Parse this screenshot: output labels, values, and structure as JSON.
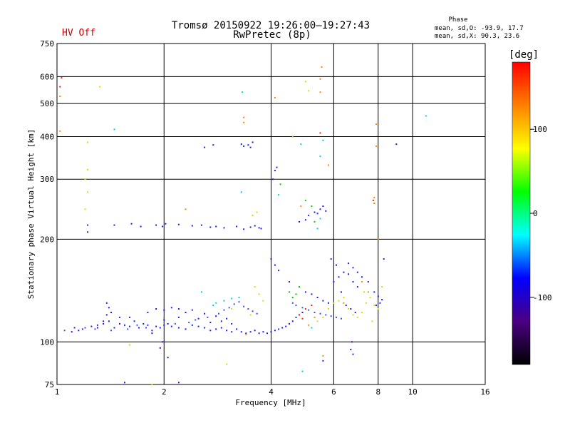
{
  "status_label": "HV Off",
  "status_color": "#cc0000",
  "chart_data": {
    "type": "scatter",
    "title": "Tromsø 20150922 19:26:00–19:27:43",
    "subtitle": "RwPretec (8p)",
    "xlabel": "Frequency [MHz]",
    "ylabel": "Stationary phase Virtual Height [km]",
    "x_scale": "log",
    "y_scale": "log",
    "xlim": [
      1,
      16
    ],
    "ylim": [
      75,
      750
    ],
    "x_ticks": [
      1,
      2,
      4,
      6,
      8,
      10,
      16
    ],
    "x_tick_labels": [
      "1",
      "2",
      "4",
      "6",
      "8",
      "10",
      "16"
    ],
    "y_ticks": [
      75,
      100,
      200,
      300,
      400,
      500,
      600,
      750
    ],
    "y_tick_labels": [
      "75",
      "100",
      "200",
      "300",
      "400",
      "500",
      "600",
      "750"
    ],
    "grid": true,
    "phase_stats": {
      "heading": "Phase",
      "line_o": "mean, sd,O: -93.9, 17.7",
      "line_x": "mean, sd,X:  90.3, 23.6"
    },
    "colorbar": {
      "label": "[deg]",
      "range": [
        -180,
        180
      ],
      "ticks": [
        100,
        0,
        -100
      ],
      "tick_labels": [
        "100",
        "0",
        "-100"
      ],
      "stops": [
        "#000000",
        "#4b0082",
        "#0000ff",
        "#00ffff",
        "#00ff00",
        "#ffff00",
        "#ff8000",
        "#ff0000"
      ]
    },
    "series": [
      {
        "color": "#1a1aff",
        "points": [
          [
            1.12,
            110
          ],
          [
            1.15,
            108
          ],
          [
            1.18,
            109
          ],
          [
            1.25,
            111
          ],
          [
            1.3,
            112
          ],
          [
            1.35,
            113
          ],
          [
            1.38,
            120
          ],
          [
            1.4,
            115
          ],
          [
            1.45,
            110
          ],
          [
            1.5,
            118
          ],
          [
            1.55,
            112
          ],
          [
            1.6,
            111
          ],
          [
            1.65,
            115
          ],
          [
            1.7,
            110
          ],
          [
            1.75,
            113
          ],
          [
            1.8,
            112
          ],
          [
            1.85,
            108
          ],
          [
            1.9,
            111
          ],
          [
            1.95,
            110
          ],
          [
            2.0,
            112
          ],
          [
            2.05,
            113
          ],
          [
            2.1,
            111
          ],
          [
            2.2,
            110
          ],
          [
            2.3,
            109
          ],
          [
            2.4,
            112
          ],
          [
            2.5,
            111
          ],
          [
            2.6,
            110
          ],
          [
            2.7,
            108
          ],
          [
            2.8,
            109
          ],
          [
            2.9,
            110
          ],
          [
            3.0,
            108
          ],
          [
            3.1,
            107
          ],
          [
            3.2,
            109
          ],
          [
            3.3,
            107
          ],
          [
            3.4,
            106
          ],
          [
            3.5,
            107
          ],
          [
            3.6,
            108
          ],
          [
            3.7,
            106
          ],
          [
            3.8,
            107
          ],
          [
            3.9,
            106
          ],
          [
            4.0,
            107
          ],
          [
            4.1,
            108
          ],
          [
            4.2,
            109
          ],
          [
            4.3,
            110
          ],
          [
            4.4,
            111
          ],
          [
            4.5,
            113
          ],
          [
            4.6,
            115
          ],
          [
            4.7,
            118
          ],
          [
            4.8,
            120
          ],
          [
            4.9,
            122
          ],
          [
            1.8,
            122
          ],
          [
            1.9,
            125
          ],
          [
            2.0,
            124
          ],
          [
            2.1,
            126
          ],
          [
            2.2,
            125
          ],
          [
            2.3,
            122
          ],
          [
            2.4,
            124
          ],
          [
            2.6,
            121
          ],
          [
            2.8,
            119
          ],
          [
            3.0,
            117
          ],
          [
            1.38,
            130
          ],
          [
            1.4,
            126
          ],
          [
            1.42,
            122
          ],
          [
            1.6,
            118
          ],
          [
            2.0,
            116
          ],
          [
            2.2,
            118
          ],
          [
            2.5,
            117
          ],
          [
            2.7,
            114
          ],
          [
            2.9,
            115
          ],
          [
            3.1,
            113
          ],
          [
            1.22,
            220
          ],
          [
            1.45,
            220
          ],
          [
            1.62,
            222
          ],
          [
            1.72,
            218
          ],
          [
            1.9,
            220
          ],
          [
            1.98,
            218
          ],
          [
            2.02,
            222
          ],
          [
            2.2,
            221
          ],
          [
            2.4,
            219
          ],
          [
            2.55,
            220
          ],
          [
            2.7,
            217
          ],
          [
            2.8,
            218
          ],
          [
            2.95,
            216
          ],
          [
            3.2,
            218
          ],
          [
            3.35,
            214
          ],
          [
            3.5,
            217
          ],
          [
            3.6,
            219
          ],
          [
            3.7,
            216
          ],
          [
            3.75,
            215
          ],
          [
            3.3,
            380
          ],
          [
            3.35,
            375
          ],
          [
            3.45,
            378
          ],
          [
            3.5,
            372
          ],
          [
            3.55,
            385
          ],
          [
            2.6,
            372
          ],
          [
            2.75,
            378
          ],
          [
            4.1,
            318
          ],
          [
            4.15,
            325
          ],
          [
            4.05,
            300
          ],
          [
            5.1,
            235
          ],
          [
            5.3,
            240
          ],
          [
            5.4,
            238
          ],
          [
            5.5,
            245
          ],
          [
            5.6,
            250
          ],
          [
            5.0,
            228
          ],
          [
            4.8,
            225
          ],
          [
            5.7,
            242
          ],
          [
            4.0,
            175
          ],
          [
            4.1,
            168
          ],
          [
            4.2,
            162
          ],
          [
            4.5,
            150
          ],
          [
            4.8,
            145
          ],
          [
            5.0,
            140
          ],
          [
            5.2,
            138
          ],
          [
            5.4,
            135
          ],
          [
            5.6,
            132
          ],
          [
            5.8,
            130
          ],
          [
            6.0,
            150
          ],
          [
            6.2,
            155
          ],
          [
            6.4,
            160
          ],
          [
            6.6,
            158
          ],
          [
            6.8,
            150
          ],
          [
            7.0,
            145
          ],
          [
            6.3,
            140
          ],
          [
            6.5,
            128
          ],
          [
            6.7,
            125
          ],
          [
            6.9,
            122
          ],
          [
            5.9,
            175
          ],
          [
            6.1,
            168
          ],
          [
            6.6,
            170
          ],
          [
            6.8,
            165
          ],
          [
            7.0,
            160
          ],
          [
            7.2,
            155
          ],
          [
            7.5,
            150
          ],
          [
            7.8,
            140
          ],
          [
            8.0,
            136
          ],
          [
            8.2,
            133
          ],
          [
            8.3,
            175
          ],
          [
            8.1,
            130
          ],
          [
            7.9,
            128
          ],
          [
            9.0,
            380
          ],
          [
            6.8,
            92
          ],
          [
            5.6,
            88
          ],
          [
            1.55,
            76
          ],
          [
            1.98,
            100
          ]
        ]
      },
      {
        "color": "#3050ff",
        "points": [
          [
            1.05,
            108
          ],
          [
            1.2,
            110
          ],
          [
            1.28,
            109
          ],
          [
            1.42,
            108
          ],
          [
            1.58,
            109
          ],
          [
            1.68,
            112
          ],
          [
            1.78,
            110
          ],
          [
            2.15,
            113
          ],
          [
            2.35,
            114
          ],
          [
            2.45,
            116
          ],
          [
            2.65,
            118
          ],
          [
            2.85,
            121
          ],
          [
            2.95,
            124
          ],
          [
            3.05,
            126
          ],
          [
            3.15,
            129
          ],
          [
            3.25,
            131
          ],
          [
            3.35,
            127
          ],
          [
            3.45,
            125
          ],
          [
            3.55,
            123
          ],
          [
            3.65,
            121
          ],
          [
            4.6,
            130
          ],
          [
            4.7,
            128
          ],
          [
            4.9,
            126
          ],
          [
            5.1,
            124
          ],
          [
            5.3,
            122
          ],
          [
            5.5,
            121
          ],
          [
            5.7,
            120
          ],
          [
            5.9,
            119
          ],
          [
            6.1,
            118
          ],
          [
            6.3,
            117
          ]
        ]
      },
      {
        "color": "#00ccee",
        "points": [
          [
            1.45,
            420
          ],
          [
            2.8,
            130
          ],
          [
            2.95,
            132
          ],
          [
            3.1,
            134
          ],
          [
            3.25,
            135
          ],
          [
            3.32,
            540
          ],
          [
            3.3,
            275
          ],
          [
            4.2,
            270
          ],
          [
            4.85,
            380
          ],
          [
            5.6,
            390
          ],
          [
            5.5,
            350
          ],
          [
            10.9,
            460
          ],
          [
            4.9,
            82
          ],
          [
            5.5,
            230
          ],
          [
            5.4,
            215
          ],
          [
            2.55,
            140
          ],
          [
            2.75,
            128
          ],
          [
            5.2,
            110
          ]
        ]
      },
      {
        "color": "#00cc00",
        "points": [
          [
            4.5,
            140
          ],
          [
            4.6,
            135
          ],
          [
            4.7,
            138
          ],
          [
            4.25,
            290
          ],
          [
            5.0,
            260
          ],
          [
            5.2,
            250
          ],
          [
            4.8,
            145
          ],
          [
            5.3,
            225
          ]
        ]
      },
      {
        "color": "#dddd00",
        "points": [
          [
            1.22,
            320
          ],
          [
            1.2,
            300
          ],
          [
            1.22,
            275
          ],
          [
            1.2,
            245
          ],
          [
            1.32,
            560
          ],
          [
            1.22,
            385
          ],
          [
            1.85,
            75
          ],
          [
            1.6,
            98
          ],
          [
            3.0,
            86
          ],
          [
            3.1,
            125
          ],
          [
            3.5,
            120
          ],
          [
            3.6,
            145
          ],
          [
            3.7,
            138
          ],
          [
            3.8,
            132
          ],
          [
            5.0,
            580
          ],
          [
            5.1,
            545
          ],
          [
            5.4,
            115
          ],
          [
            5.6,
            118
          ],
          [
            5.8,
            125
          ],
          [
            6.0,
            130
          ],
          [
            6.2,
            132
          ],
          [
            6.4,
            135
          ],
          [
            6.6,
            125
          ],
          [
            6.8,
            120
          ],
          [
            7.0,
            118
          ],
          [
            7.2,
            122
          ],
          [
            7.4,
            130
          ],
          [
            7.6,
            135
          ],
          [
            7.8,
            128
          ],
          [
            8.0,
            125
          ],
          [
            8.2,
            145
          ],
          [
            7.7,
            115
          ],
          [
            7.3,
            140
          ],
          [
            3.55,
            235
          ],
          [
            3.65,
            240
          ]
        ]
      },
      {
        "color": "#ff8800",
        "points": [
          [
            1.02,
            415
          ],
          [
            1.02,
            525
          ],
          [
            3.35,
            440
          ],
          [
            3.35,
            455
          ],
          [
            4.1,
            520
          ],
          [
            5.5,
            540
          ],
          [
            5.55,
            640
          ],
          [
            5.5,
            590
          ],
          [
            5.8,
            330
          ],
          [
            7.2,
            150
          ],
          [
            7.5,
            140
          ],
          [
            8.0,
            200
          ],
          [
            7.8,
            265
          ],
          [
            7.8,
            255
          ],
          [
            7.9,
            435
          ],
          [
            7.9,
            375
          ],
          [
            5.1,
            112
          ],
          [
            5.3,
            118
          ],
          [
            5.6,
            91
          ],
          [
            2.3,
            245
          ],
          [
            4.6,
            400
          ],
          [
            4.85,
            250
          ],
          [
            3.4,
            105
          ],
          [
            6.4,
            130
          ]
        ]
      },
      {
        "color": "#ff2200",
        "points": [
          [
            1.03,
            595
          ],
          [
            1.02,
            560
          ],
          [
            4.8,
            120
          ],
          [
            4.9,
            117
          ],
          [
            5.0,
            125
          ],
          [
            5.2,
            128
          ],
          [
            7.75,
            260
          ],
          [
            5.5,
            410
          ]
        ]
      },
      {
        "color": "#5500aa",
        "points": [
          [
            1.1,
            107
          ],
          [
            1.3,
            110
          ],
          [
            1.35,
            115
          ],
          [
            1.5,
            113
          ],
          [
            1.95,
            96
          ],
          [
            2.05,
            90
          ],
          [
            6.7,
            95
          ],
          [
            6.75,
            100
          ],
          [
            1.85,
            106
          ],
          [
            1.22,
            210
          ],
          [
            2.2,
            76
          ]
        ]
      }
    ]
  }
}
